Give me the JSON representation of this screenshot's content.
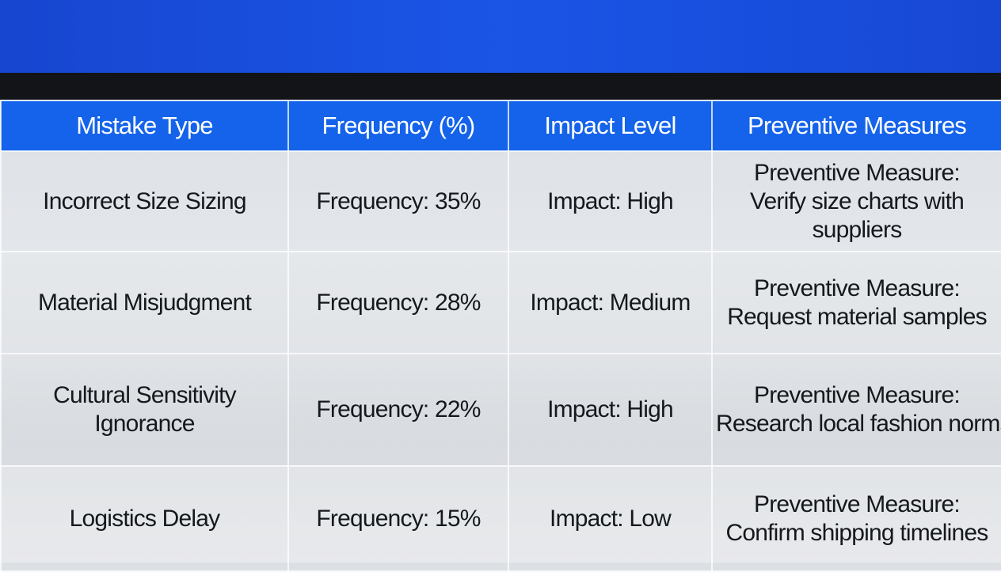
{
  "table": {
    "header": [
      "Mistake Type",
      "Frequency (%)",
      "Impact Level",
      "Preventive Measures"
    ],
    "rows": [
      {
        "mistake": "Incorrect Size Sizing",
        "frequency": "Frequency: 35%",
        "impact": "Impact: High",
        "measure": [
          "Preventive Measure:",
          "Verify size charts with",
          "suppliers"
        ]
      },
      {
        "mistake": "Material Misjudgment",
        "frequency": "Frequency: 28%",
        "impact": "Impact: Medium",
        "measure": [
          "Preventive Measure:",
          "Request material samples"
        ]
      },
      {
        "mistake": "Cultural Sensitivity Ignorance",
        "frequency": "Frequency: 22%",
        "impact": "Impact: High",
        "measure": [
          "Preventive Measure:",
          "Research local fashion norms"
        ]
      },
      {
        "mistake": "Logistics Delay",
        "frequency": "Frequency: 15%",
        "impact": "Impact: Low",
        "measure": [
          "Preventive Measure:",
          "Confirm shipping timelines"
        ]
      }
    ]
  }
}
